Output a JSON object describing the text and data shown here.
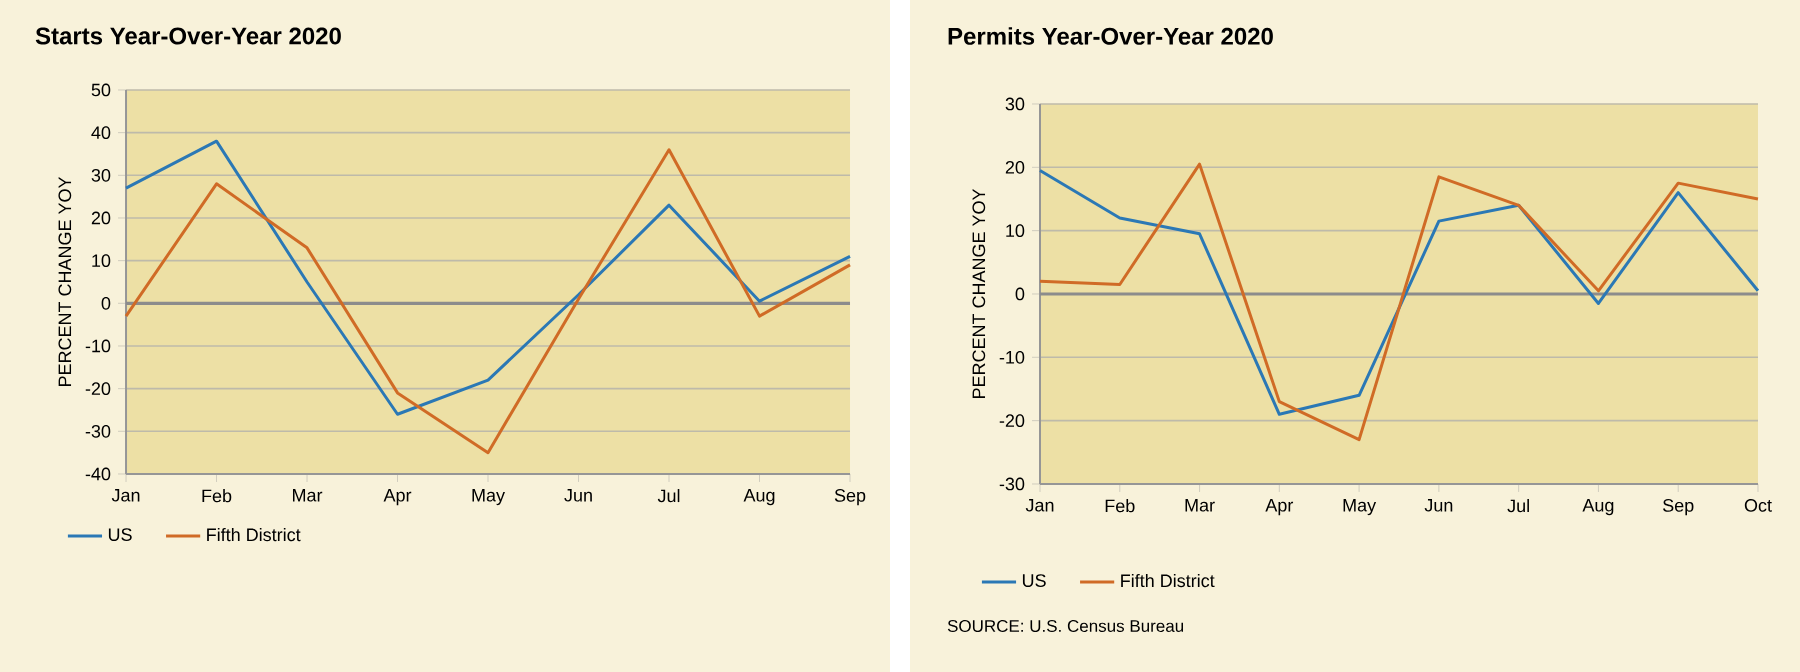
{
  "chart_data": [
    {
      "type": "line",
      "title": "Starts Year-Over-Year 2020",
      "ylabel": "PERCENT CHANGE YOY",
      "categories": [
        "Jan",
        "Feb",
        "Mar",
        "Apr",
        "May",
        "Jun",
        "Jul",
        "Aug",
        "Sep"
      ],
      "series": [
        {
          "name": "US",
          "color": "#2b78b5",
          "values": [
            27,
            38,
            5,
            -26,
            -18,
            2,
            23,
            0.5,
            11
          ]
        },
        {
          "name": "Fifth District",
          "color": "#d06b26",
          "values": [
            -3,
            28,
            13,
            -21,
            -35,
            1,
            36,
            -3,
            9
          ]
        }
      ],
      "ylim": [
        -40,
        50
      ],
      "yticks": [
        -40,
        -30,
        -20,
        -10,
        0,
        10,
        20,
        30,
        40,
        50
      ],
      "grid": "y",
      "legend": "bottom left",
      "marker": "none",
      "line_style": "solid",
      "ref_lines": [
        {
          "axis": "y",
          "value": 0,
          "color": "#8c8c8c"
        }
      ]
    },
    {
      "type": "line",
      "title": "Permits Year-Over-Year 2020",
      "ylabel": "PERCENT CHANGE YOY",
      "categories": [
        "Jan",
        "Feb",
        "Mar",
        "Apr",
        "May",
        "Jun",
        "Jul",
        "Aug",
        "Sep",
        "Oct"
      ],
      "series": [
        {
          "name": "US",
          "color": "#2b78b5",
          "values": [
            19.5,
            12,
            9.5,
            -19,
            -16,
            11.5,
            14,
            -1.5,
            16,
            0.5
          ]
        },
        {
          "name": "Fifth District",
          "color": "#d06b26",
          "values": [
            2,
            1.5,
            20.5,
            -17,
            -23,
            18.5,
            14,
            0.5,
            17.5,
            15
          ]
        }
      ],
      "ylim": [
        -30,
        30
      ],
      "yticks": [
        -30,
        -20,
        -10,
        0,
        10,
        20,
        30
      ],
      "grid": "y",
      "legend": "bottom left",
      "marker": "none",
      "line_style": "solid",
      "ref_lines": [
        {
          "axis": "y",
          "value": 0,
          "color": "#8c8c8c"
        }
      ],
      "annotations": [
        "SOURCE: U.S. Census Bureau"
      ]
    }
  ]
}
